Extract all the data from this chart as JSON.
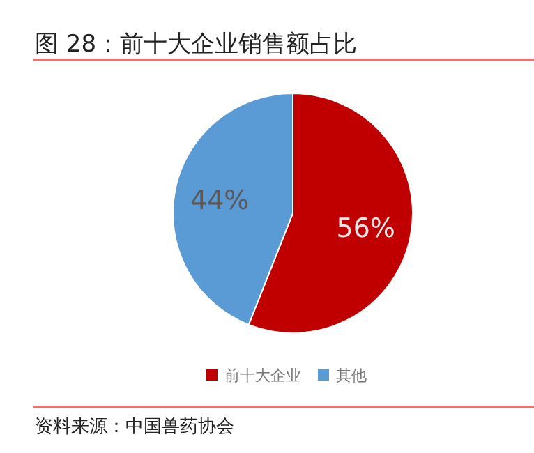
{
  "chart_data": {
    "type": "pie",
    "title": "图 28：前十大企业销售额占比",
    "categories": [
      "前十大企业",
      "其他"
    ],
    "values": [
      56,
      44
    ],
    "colors": [
      "#c00000",
      "#5b9bd5"
    ],
    "value_labels": [
      "56%",
      "44%"
    ],
    "legend": "bottom",
    "annotations": [
      "资料来源：中国兽药协会"
    ]
  }
}
